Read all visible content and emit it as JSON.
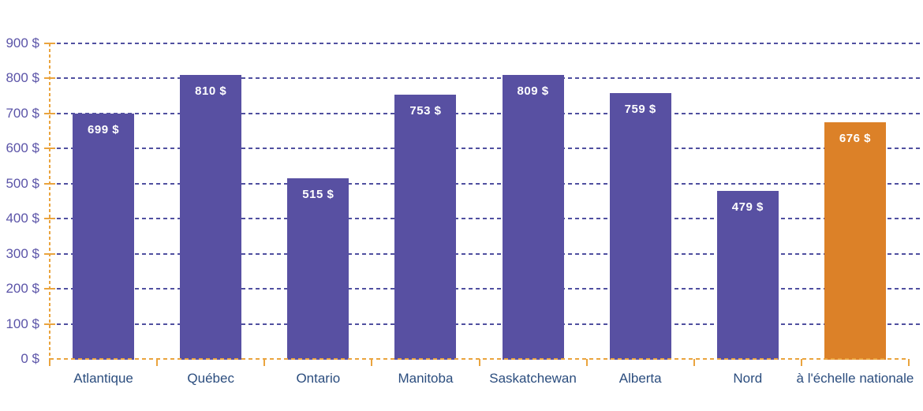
{
  "chart_data": {
    "type": "bar",
    "title": "",
    "xlabel": "",
    "ylabel": "",
    "categories": [
      "Atlantique",
      "Québec",
      "Ontario",
      "Manitoba",
      "Saskatchewan",
      "Alberta",
      "Nord",
      "à l'échelle nationale"
    ],
    "values": [
      699,
      810,
      515,
      753,
      809,
      759,
      479,
      676
    ],
    "bar_labels": [
      "699 $",
      "810 $",
      "515 $",
      "753 $",
      "809 $",
      "759 $",
      "479 $",
      "676 $"
    ],
    "highlight_index": 7,
    "ylim": [
      0,
      900
    ],
    "ytick_step": 100,
    "ytick_labels": [
      "0 $",
      "100 $",
      "200 $",
      "300 $",
      "400 $",
      "500 $",
      "600 $",
      "700 $",
      "800 $",
      "900 $"
    ],
    "grid": "horizontal-dashed",
    "legend": "none",
    "colors": {
      "bar_default": "#5850a2",
      "bar_highlight": "#dc8128",
      "gridline": "#5050a0",
      "axis_dashed": "#eaa43e",
      "x_tick_label": "#2b4d7e",
      "y_tick_label": "#5b54a8",
      "bar_label_text": "#ffffff",
      "background": "#ffffff"
    }
  }
}
